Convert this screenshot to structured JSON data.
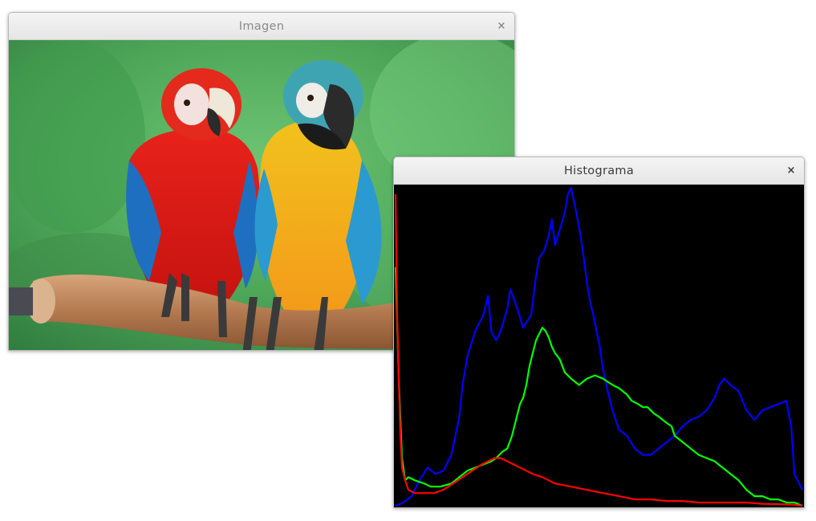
{
  "windows": {
    "imagen": {
      "title": "Imagen",
      "close_glyph": "×"
    },
    "histograma": {
      "title": "Histograma",
      "close_glyph": "×"
    }
  },
  "colors": {
    "title_text_inactive": "#8a8a8a",
    "title_text_active": "#3c3c3c",
    "close_inactive": "#8a8a8a",
    "close_active": "#3c3c3c",
    "histogram_bg": "#000000",
    "blue_channel": "#0000ff",
    "green_channel": "#00ff00",
    "red_channel": "#ff0000"
  },
  "image": {
    "subject": "photo",
    "foreground": [
      "red-macaw",
      "blue-and-yellow-macaw",
      "wooden-branch"
    ]
  },
  "chart_data": {
    "type": "line",
    "x_range": [
      0,
      255
    ],
    "y_range": [
      0,
      100
    ],
    "grid": false,
    "series": [
      {
        "color": "#0000ff",
        "points": [
          [
            0,
            0
          ],
          [
            5,
            1
          ],
          [
            10,
            3
          ],
          [
            15,
            8
          ],
          [
            20,
            12
          ],
          [
            25,
            10
          ],
          [
            30,
            11
          ],
          [
            35,
            16
          ],
          [
            40,
            28
          ],
          [
            42,
            38
          ],
          [
            45,
            47
          ],
          [
            50,
            55
          ],
          [
            55,
            60
          ],
          [
            58,
            66
          ],
          [
            60,
            55
          ],
          [
            63,
            52
          ],
          [
            66,
            55
          ],
          [
            70,
            62
          ],
          [
            72,
            68
          ],
          [
            75,
            64
          ],
          [
            80,
            56
          ],
          [
            85,
            60
          ],
          [
            88,
            72
          ],
          [
            90,
            78
          ],
          [
            93,
            80
          ],
          [
            96,
            85
          ],
          [
            98,
            90
          ],
          [
            100,
            82
          ],
          [
            103,
            87
          ],
          [
            106,
            92
          ],
          [
            108,
            98
          ],
          [
            110,
            100
          ],
          [
            113,
            93
          ],
          [
            116,
            85
          ],
          [
            118,
            78
          ],
          [
            120,
            70
          ],
          [
            122,
            64
          ],
          [
            124,
            60
          ],
          [
            126,
            55
          ],
          [
            128,
            50
          ],
          [
            130,
            43
          ],
          [
            133,
            36
          ],
          [
            136,
            30
          ],
          [
            140,
            24
          ],
          [
            145,
            22
          ],
          [
            150,
            18
          ],
          [
            155,
            16
          ],
          [
            160,
            16
          ],
          [
            165,
            18
          ],
          [
            170,
            20
          ],
          [
            175,
            22
          ],
          [
            180,
            25
          ],
          [
            185,
            27
          ],
          [
            190,
            28
          ],
          [
            195,
            30
          ],
          [
            200,
            34
          ],
          [
            203,
            38
          ],
          [
            206,
            40
          ],
          [
            210,
            38
          ],
          [
            215,
            36
          ],
          [
            220,
            30
          ],
          [
            225,
            27
          ],
          [
            230,
            30
          ],
          [
            235,
            31
          ],
          [
            240,
            32
          ],
          [
            245,
            33
          ],
          [
            248,
            25
          ],
          [
            250,
            10
          ],
          [
            252,
            8
          ],
          [
            255,
            5
          ]
        ]
      },
      {
        "color": "#00ff00",
        "points": [
          [
            0,
            75
          ],
          [
            2,
            40
          ],
          [
            4,
            15
          ],
          [
            6,
            8
          ],
          [
            8,
            9
          ],
          [
            12,
            8
          ],
          [
            18,
            7
          ],
          [
            22,
            6
          ],
          [
            28,
            6
          ],
          [
            35,
            7
          ],
          [
            40,
            9
          ],
          [
            45,
            11
          ],
          [
            50,
            12
          ],
          [
            55,
            13
          ],
          [
            60,
            14
          ],
          [
            63,
            15
          ],
          [
            67,
            17
          ],
          [
            70,
            18
          ],
          [
            73,
            22
          ],
          [
            76,
            28
          ],
          [
            78,
            32
          ],
          [
            80,
            34
          ],
          [
            82,
            38
          ],
          [
            84,
            44
          ],
          [
            86,
            48
          ],
          [
            88,
            52
          ],
          [
            90,
            54
          ],
          [
            92,
            56
          ],
          [
            94,
            55
          ],
          [
            96,
            53
          ],
          [
            98,
            50
          ],
          [
            100,
            48
          ],
          [
            103,
            46
          ],
          [
            106,
            42
          ],
          [
            110,
            40
          ],
          [
            115,
            38
          ],
          [
            120,
            40
          ],
          [
            125,
            41
          ],
          [
            130,
            40
          ],
          [
            133,
            39
          ],
          [
            136,
            38
          ],
          [
            140,
            37
          ],
          [
            145,
            35
          ],
          [
            148,
            33
          ],
          [
            152,
            32
          ],
          [
            155,
            31
          ],
          [
            158,
            31
          ],
          [
            160,
            30
          ],
          [
            162,
            29
          ],
          [
            165,
            28
          ],
          [
            170,
            26
          ],
          [
            173,
            25
          ],
          [
            175,
            22
          ],
          [
            180,
            20
          ],
          [
            185,
            18
          ],
          [
            190,
            16
          ],
          [
            195,
            15
          ],
          [
            200,
            14
          ],
          [
            205,
            12
          ],
          [
            210,
            10
          ],
          [
            215,
            8
          ],
          [
            220,
            5
          ],
          [
            225,
            3
          ],
          [
            230,
            3
          ],
          [
            235,
            2
          ],
          [
            240,
            2
          ],
          [
            245,
            1
          ],
          [
            250,
            1
          ],
          [
            255,
            0
          ]
        ]
      },
      {
        "color": "#ff0000",
        "points": [
          [
            0,
            98
          ],
          [
            1,
            60
          ],
          [
            2,
            40
          ],
          [
            3,
            22
          ],
          [
            4,
            12
          ],
          [
            6,
            8
          ],
          [
            8,
            5
          ],
          [
            12,
            4
          ],
          [
            18,
            4
          ],
          [
            24,
            4
          ],
          [
            30,
            5
          ],
          [
            36,
            7
          ],
          [
            42,
            9
          ],
          [
            48,
            11
          ],
          [
            54,
            13
          ],
          [
            58,
            14
          ],
          [
            62,
            15
          ],
          [
            66,
            15
          ],
          [
            70,
            14
          ],
          [
            74,
            13
          ],
          [
            78,
            12
          ],
          [
            82,
            11
          ],
          [
            86,
            10
          ],
          [
            92,
            9
          ],
          [
            100,
            7
          ],
          [
            110,
            6
          ],
          [
            120,
            5
          ],
          [
            130,
            4
          ],
          [
            140,
            3
          ],
          [
            150,
            2
          ],
          [
            160,
            2
          ],
          [
            170,
            1.5
          ],
          [
            180,
            1.5
          ],
          [
            190,
            1
          ],
          [
            200,
            1
          ],
          [
            210,
            1
          ],
          [
            220,
            1
          ],
          [
            230,
            0.6
          ],
          [
            240,
            0.5
          ],
          [
            250,
            0.3
          ],
          [
            255,
            0
          ]
        ]
      }
    ]
  }
}
